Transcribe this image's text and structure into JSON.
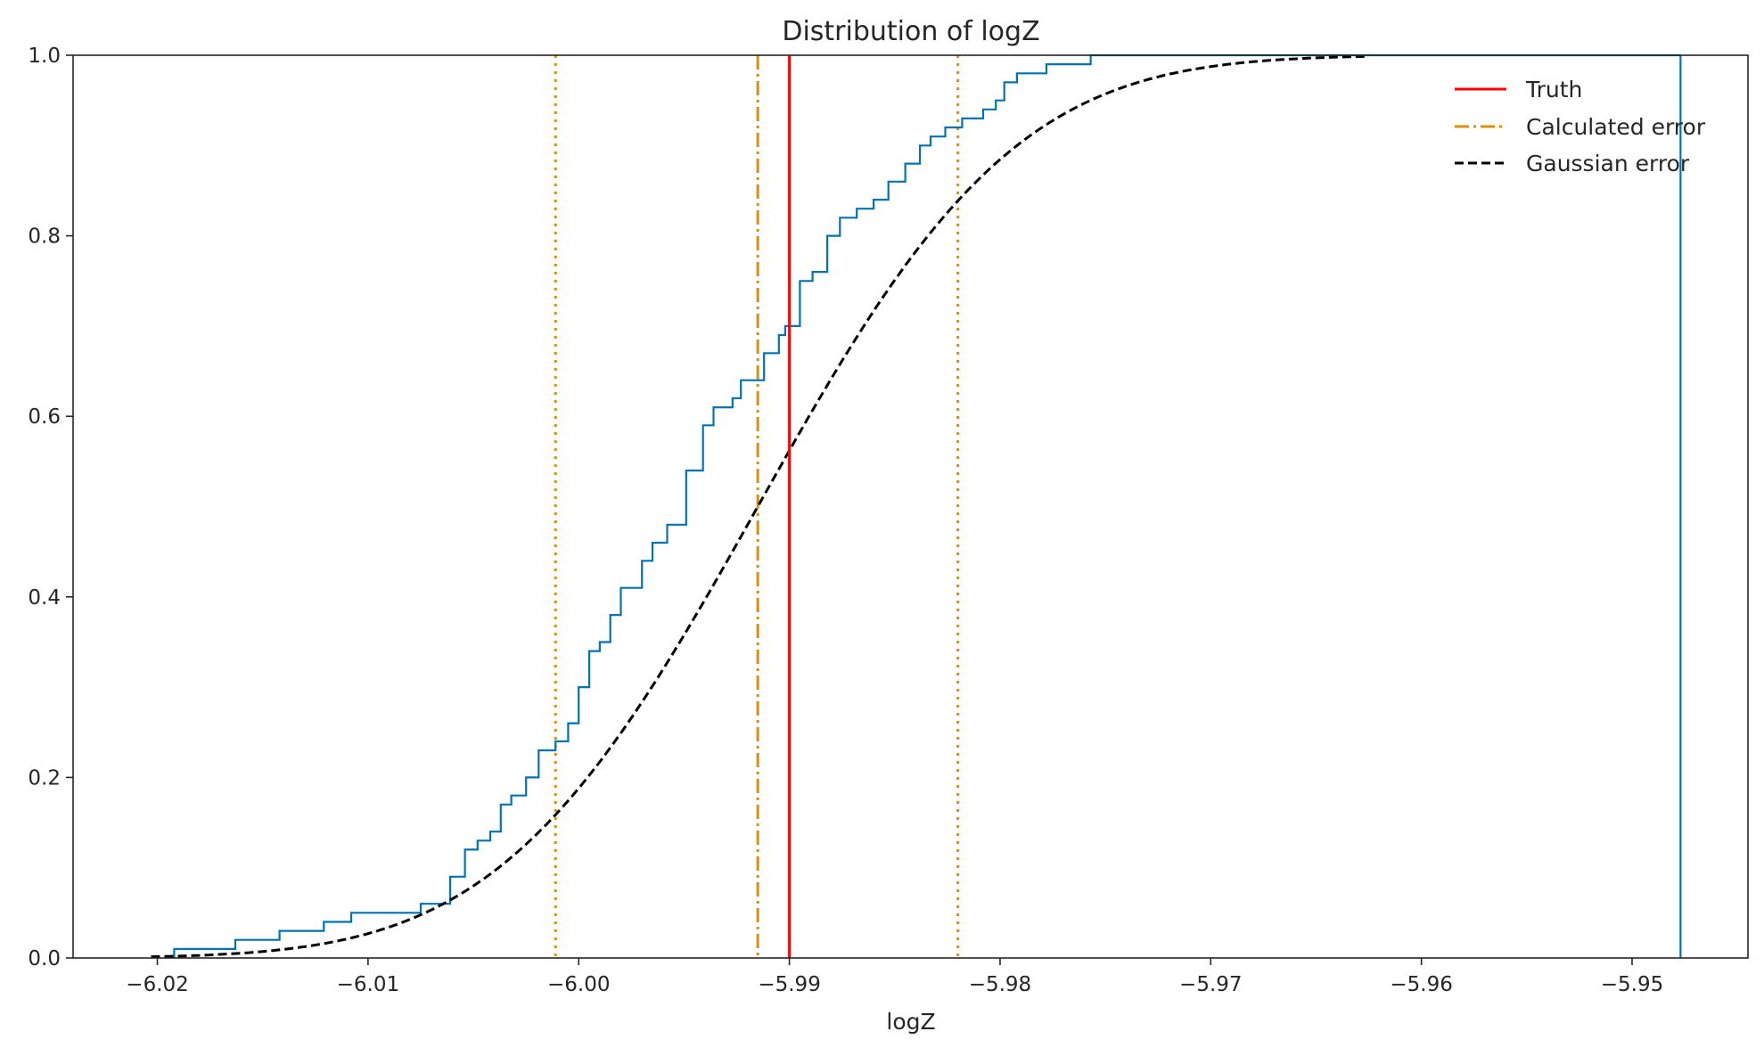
{
  "chart_data": {
    "type": "line",
    "title": "Distribution of logZ",
    "xlabel": "logZ",
    "ylabel": "",
    "xlim": [
      -6.024,
      -5.9445
    ],
    "ylim": [
      0.0,
      1.0
    ],
    "grid": false,
    "legend_position": "top-right",
    "x_ticks": [
      "−6.02",
      "−6.01",
      "−6.00",
      "−5.99",
      "−5.98",
      "−5.97",
      "−5.96",
      "−5.95"
    ],
    "x_tick_values": [
      -6.02,
      -6.01,
      -6.0,
      -5.99,
      -5.98,
      -5.97,
      -5.96,
      -5.95
    ],
    "y_ticks": [
      "0.0",
      "0.2",
      "0.4",
      "0.6",
      "0.8",
      "1.0"
    ],
    "y_tick_values": [
      0.0,
      0.2,
      0.4,
      0.6,
      0.8,
      1.0
    ],
    "legend": [
      "Truth",
      "Calculated error",
      "Gaussian error"
    ],
    "colors": {
      "ecdf": "#0173b2",
      "truth": "#ff0000",
      "calculated": "#de8f05",
      "gaussian": "#000000"
    },
    "series": [
      {
        "kind": "ecdf_step",
        "x": [
          -6.0192,
          -6.0163,
          -6.0142,
          -6.0121,
          -6.0108,
          -6.0075,
          -6.0061,
          -6.0054,
          -6.0048,
          -6.0042,
          -6.0037,
          -6.0032,
          -6.0025,
          -6.0019,
          -6.0011,
          -6.0005,
          -6.0,
          -5.9995,
          -5.999,
          -5.9985,
          -5.998,
          -5.997,
          -5.9965,
          -5.9958,
          -5.9949,
          -5.9941,
          -5.9936,
          -5.9927,
          -5.9923,
          -5.9912,
          -5.9905,
          -5.9902,
          -5.9895,
          -5.9889,
          -5.9882,
          -5.9876,
          -5.9868,
          -5.986,
          -5.9856,
          -5.9853,
          -5.9845,
          -5.9838,
          -5.9833,
          -5.9826,
          -5.9818,
          -5.9808,
          -5.9802,
          -5.9798,
          -5.9792,
          -5.9778,
          -5.9757,
          -5.9752,
          -5.9744,
          -5.9729,
          -5.9718,
          -5.9703,
          -5.9688,
          -5.9657,
          -5.9485,
          -5.9477
        ],
        "y": [
          0.01,
          0.02,
          0.03,
          0.04,
          0.05,
          0.06,
          0.09,
          0.12,
          0.13,
          0.14,
          0.17,
          0.18,
          0.2,
          0.23,
          0.24,
          0.26,
          0.3,
          0.34,
          0.35,
          0.38,
          0.41,
          0.44,
          0.46,
          0.48,
          0.54,
          0.59,
          0.61,
          0.62,
          0.64,
          0.67,
          0.69,
          0.7,
          0.75,
          0.76,
          0.8,
          0.82,
          0.83,
          0.84,
          0.84,
          0.86,
          0.88,
          0.9,
          0.91,
          0.92,
          0.93,
          0.94,
          0.95,
          0.97,
          0.98,
          0.99,
          1.0,
          1.0,
          1.0,
          1.0,
          1.0,
          1.0,
          1.0,
          1.0,
          1.0,
          1.0
        ]
      },
      {
        "name": "Truth",
        "kind": "vline",
        "x": -5.99
      },
      {
        "name": "Calculated error",
        "kind": "vlines",
        "center": -5.9915,
        "lower": -6.0011,
        "upper": -5.982
      },
      {
        "name": "Gaussian error",
        "kind": "normal_cdf",
        "mean": -5.9915,
        "sd": 0.0096,
        "x_range": [
          -6.0203,
          -5.9627
        ]
      }
    ]
  }
}
